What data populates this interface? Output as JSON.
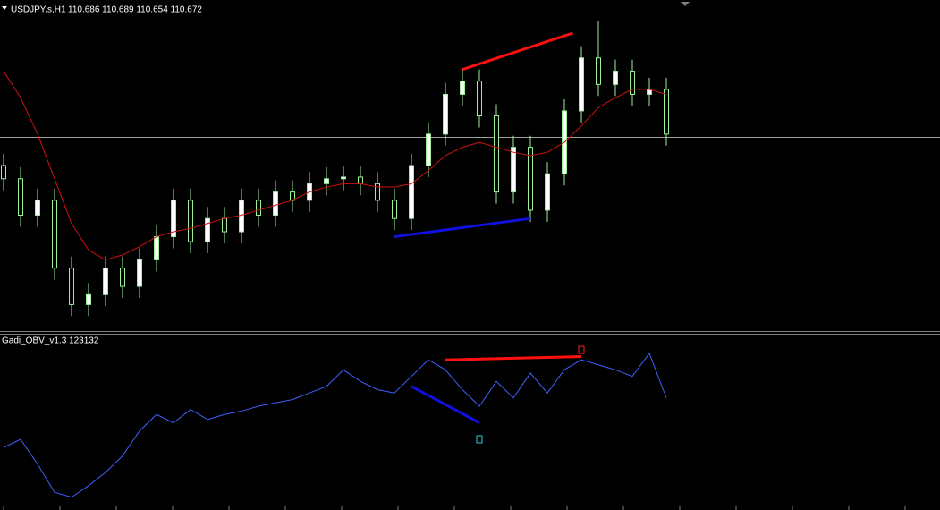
{
  "chart_data": [
    {
      "type": "candlestick",
      "title": "USDJPY.s,H1",
      "subtitle": "110.686 110.689 110.654 110.672",
      "ylim": [
        109.48,
        111.48
      ],
      "open": [
        110.48,
        110.4,
        110.18,
        110.27,
        109.86,
        109.64,
        109.7,
        109.86,
        109.75,
        109.91,
        110.05,
        110.27,
        110.02,
        110.16,
        110.08,
        110.27,
        110.18,
        110.32,
        110.27,
        110.37,
        110.4,
        110.41,
        110.37,
        110.27,
        110.16,
        110.48,
        110.67,
        110.91,
        110.99,
        110.78,
        110.32,
        110.59,
        110.21,
        110.43,
        110.81,
        111.13,
        110.97,
        111.05,
        110.91,
        110.94
      ],
      "high": [
        110.55,
        110.47,
        110.34,
        110.34,
        109.93,
        109.77,
        109.93,
        109.93,
        109.98,
        110.12,
        110.34,
        110.34,
        110.23,
        110.23,
        110.34,
        110.34,
        110.39,
        110.39,
        110.44,
        110.47,
        110.48,
        110.48,
        110.44,
        110.34,
        110.55,
        110.74,
        110.98,
        111.06,
        111.06,
        110.85,
        110.66,
        110.66,
        110.5,
        110.88,
        111.2,
        111.35,
        111.12,
        111.12,
        111.01,
        111.01
      ],
      "low": [
        110.33,
        110.11,
        110.11,
        109.79,
        109.57,
        109.57,
        109.63,
        109.68,
        109.68,
        109.84,
        109.98,
        109.95,
        109.95,
        110.01,
        110.01,
        110.11,
        110.11,
        110.2,
        110.2,
        110.3,
        110.33,
        110.3,
        110.2,
        110.09,
        110.09,
        110.41,
        110.6,
        110.84,
        110.71,
        110.25,
        110.25,
        110.14,
        110.14,
        110.36,
        110.74,
        110.9,
        110.9,
        110.84,
        110.84,
        110.6
      ],
      "close": [
        110.4,
        110.18,
        110.27,
        109.86,
        109.64,
        109.7,
        109.86,
        109.75,
        109.91,
        110.05,
        110.27,
        110.02,
        110.16,
        110.08,
        110.27,
        110.18,
        110.32,
        110.27,
        110.37,
        110.4,
        110.41,
        110.37,
        110.27,
        110.16,
        110.48,
        110.67,
        110.91,
        110.99,
        110.78,
        110.32,
        110.59,
        110.21,
        110.43,
        110.81,
        111.13,
        110.97,
        111.05,
        110.91,
        110.94,
        110.67
      ],
      "up_color": "#ffffff",
      "down_color": "#000000",
      "wick_color": "#9cf09c",
      "moving_average": {
        "color": "#d01010",
        "values": [
          111.05,
          110.89,
          110.67,
          110.4,
          110.13,
          109.97,
          109.91,
          109.94,
          109.99,
          110.05,
          110.08,
          110.1,
          110.13,
          110.16,
          110.18,
          110.21,
          110.24,
          110.27,
          110.32,
          110.35,
          110.37,
          110.37,
          110.35,
          110.35,
          110.37,
          110.45,
          110.54,
          110.59,
          110.62,
          110.59,
          110.56,
          110.54,
          110.56,
          110.62,
          110.72,
          110.83,
          110.89,
          110.94,
          110.94,
          110.91
        ]
      },
      "hline": {
        "value": 110.65,
        "color": "#a0a0a0"
      },
      "trend_lines": [
        {
          "color": "#ff1010",
          "x": [
            27,
            33.5
          ],
          "y": [
            111.06,
            111.28
          ]
        },
        {
          "color": "#1010e0",
          "x": [
            23,
            31
          ],
          "y": [
            110.05,
            110.16
          ]
        }
      ]
    },
    {
      "type": "line",
      "title": "Gadi_OBV_v1.3 123132",
      "ylim": [
        0,
        100
      ],
      "color": "#4060ff",
      "values": [
        35,
        40,
        25,
        8,
        5,
        12,
        20,
        30,
        45,
        55,
        50,
        58,
        52,
        55,
        57,
        60,
        62,
        64,
        68,
        72,
        82,
        75,
        70,
        68,
        78,
        88,
        82,
        70,
        60,
        75,
        65,
        80,
        68,
        82,
        88,
        85,
        82,
        78,
        92,
        65
      ],
      "trend_lines": [
        {
          "color": "#ff1010",
          "x": [
            26,
            34
          ],
          "y": [
            88,
            90
          ]
        },
        {
          "color": "#1010e0",
          "x": [
            24,
            28
          ],
          "y": [
            72,
            50
          ]
        }
      ],
      "signals": [
        {
          "x": 28,
          "y": 40,
          "color": "#20d0d0"
        },
        {
          "x": 34,
          "y": 94,
          "color": "#ff2020"
        }
      ]
    }
  ]
}
